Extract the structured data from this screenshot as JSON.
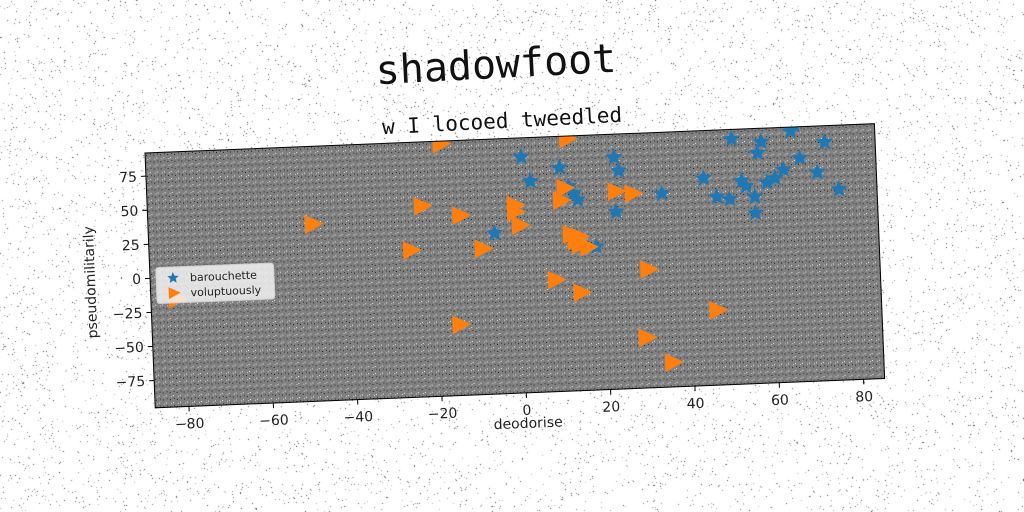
{
  "chart_data": {
    "type": "scatter",
    "title": "shadowfoot",
    "subtitle": "w I locoed tweedled",
    "xlabel": "deodorise",
    "ylabel": "pseudomilitarily",
    "xlim": [
      -88,
      85
    ],
    "ylim": [
      -95,
      92
    ],
    "xticks": [
      -80,
      -60,
      -40,
      -20,
      0,
      20,
      40,
      60,
      80
    ],
    "yticks": [
      -75,
      -50,
      -25,
      0,
      25,
      50,
      75
    ],
    "xtick_labels": [
      "−80",
      "−60",
      "−40",
      "−20",
      "0",
      "20",
      "40",
      "60",
      "80"
    ],
    "ytick_labels": [
      "−75",
      "−50",
      "−25",
      "0",
      "25",
      "50",
      "75"
    ],
    "grid": false,
    "legend_position": "center-left",
    "background_color": "#808080",
    "series": [
      {
        "name": "barouchette",
        "marker": "star",
        "color": "#1f77b4",
        "points": [
          [
            1,
            78
          ],
          [
            -6,
            23
          ],
          [
            3,
            60
          ],
          [
            10,
            69
          ],
          [
            12,
            55
          ],
          [
            13,
            50
          ],
          [
            14,
            45
          ],
          [
            18,
            10
          ],
          [
            23,
            75
          ],
          [
            24,
            65
          ],
          [
            23,
            35
          ],
          [
            34,
            47
          ],
          [
            44,
            57
          ],
          [
            47,
            43
          ],
          [
            50,
            41
          ],
          [
            51,
            85
          ],
          [
            53,
            54
          ],
          [
            54,
            50
          ],
          [
            56,
            42
          ],
          [
            56,
            30
          ],
          [
            57,
            74
          ],
          [
            58,
            82
          ],
          [
            59,
            52
          ],
          [
            61,
            55
          ],
          [
            63,
            61
          ],
          [
            65,
            89
          ],
          [
            66,
            93
          ],
          [
            67,
            69
          ],
          [
            71,
            58
          ],
          [
            73,
            80
          ],
          [
            76,
            45
          ]
        ]
      },
      {
        "name": "voluptuously",
        "marker": "triangle-right",
        "color": "#ff7f0e",
        "points": [
          [
            -18,
            90
          ],
          [
            12,
            90
          ],
          [
            -23,
            45
          ],
          [
            -14,
            37
          ],
          [
            -49,
            35
          ],
          [
            -26,
            13
          ],
          [
            -9,
            12
          ],
          [
            -1,
            43
          ],
          [
            -1,
            38
          ],
          [
            0,
            28
          ],
          [
            10,
            45
          ],
          [
            11,
            54
          ],
          [
            12,
            20
          ],
          [
            13,
            15
          ],
          [
            14,
            18
          ],
          [
            14,
            12
          ],
          [
            16,
            10
          ],
          [
            23,
            50
          ],
          [
            27,
            48
          ],
          [
            8,
            -13
          ],
          [
            14,
            -23
          ],
          [
            30,
            -8
          ],
          [
            -82,
            -16
          ],
          [
            -15,
            -43
          ],
          [
            29,
            -58
          ],
          [
            35,
            -77
          ],
          [
            46,
            -40
          ]
        ]
      }
    ]
  }
}
